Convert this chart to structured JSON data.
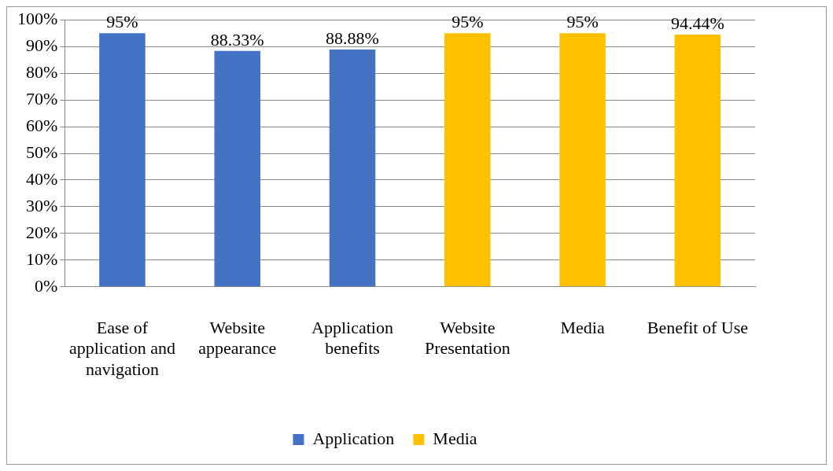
{
  "chart_data": {
    "type": "bar",
    "categories": [
      "Ease of application and navigation",
      "Website appearance",
      "Application benefits",
      "Website Presentation",
      "Media",
      "Benefit of Use"
    ],
    "series": [
      {
        "name": "Application",
        "color": "#4472c4",
        "values": [
          95,
          88.33,
          88.88,
          null,
          null,
          null
        ],
        "value_labels": [
          "95%",
          "88.33%",
          "88.88%",
          null,
          null,
          null
        ]
      },
      {
        "name": "Media",
        "color": "#ffc000",
        "values": [
          null,
          null,
          null,
          95,
          95,
          94.44
        ],
        "value_labels": [
          null,
          null,
          null,
          "95%",
          "95%",
          "94.44%"
        ]
      }
    ],
    "ylim": [
      0,
      100
    ],
    "yticks": [
      {
        "value": 0,
        "label": "0%"
      },
      {
        "value": 10,
        "label": "10%"
      },
      {
        "value": 20,
        "label": "20%"
      },
      {
        "value": 30,
        "label": "30%"
      },
      {
        "value": 40,
        "label": "40%"
      },
      {
        "value": 50,
        "label": "50%"
      },
      {
        "value": 60,
        "label": "60%"
      },
      {
        "value": 70,
        "label": "70%"
      },
      {
        "value": 80,
        "label": "80%"
      },
      {
        "value": 90,
        "label": "90%"
      },
      {
        "value": 100,
        "label": "100%"
      }
    ],
    "grid": "y",
    "legend": "bottom"
  }
}
